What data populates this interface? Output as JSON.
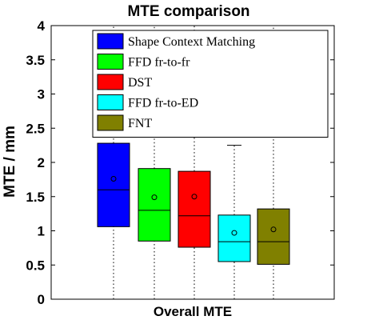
{
  "chart_data": {
    "type": "box",
    "title": "MTE comparison",
    "xlabel": "Overall MTE",
    "ylabel": "MTE / mm",
    "ylim": [
      0,
      4
    ],
    "yticks": [
      "0",
      "0.5",
      "1",
      "1.5",
      "2",
      "2.5",
      "3",
      "3.5",
      "4"
    ],
    "legend_position": "top-right",
    "series": [
      {
        "name": "Shape Context Matching",
        "color": "#0000ff",
        "min": 0,
        "q1": 1.06,
        "median": 1.6,
        "q3": 2.28,
        "max": 4,
        "mean": 1.76
      },
      {
        "name": "FFD fr-to-fr",
        "color": "#00ff00",
        "min": 0,
        "q1": 0.85,
        "median": 1.3,
        "q3": 1.91,
        "max": 4,
        "mean": 1.49
      },
      {
        "name": "DST",
        "color": "#ff0000",
        "min": 0,
        "q1": 0.76,
        "median": 1.22,
        "q3": 1.87,
        "max": 4,
        "mean": 1.5
      },
      {
        "name": "FFD fr-to-ED",
        "color": "#00ffff",
        "min": 0,
        "q1": 0.55,
        "median": 0.84,
        "q3": 1.23,
        "max": 2.25,
        "mean": 0.97
      },
      {
        "name": "FNT",
        "color": "#808000",
        "min": 0,
        "q1": 0.51,
        "median": 0.84,
        "q3": 1.32,
        "max": 4,
        "mean": 1.02
      }
    ]
  }
}
